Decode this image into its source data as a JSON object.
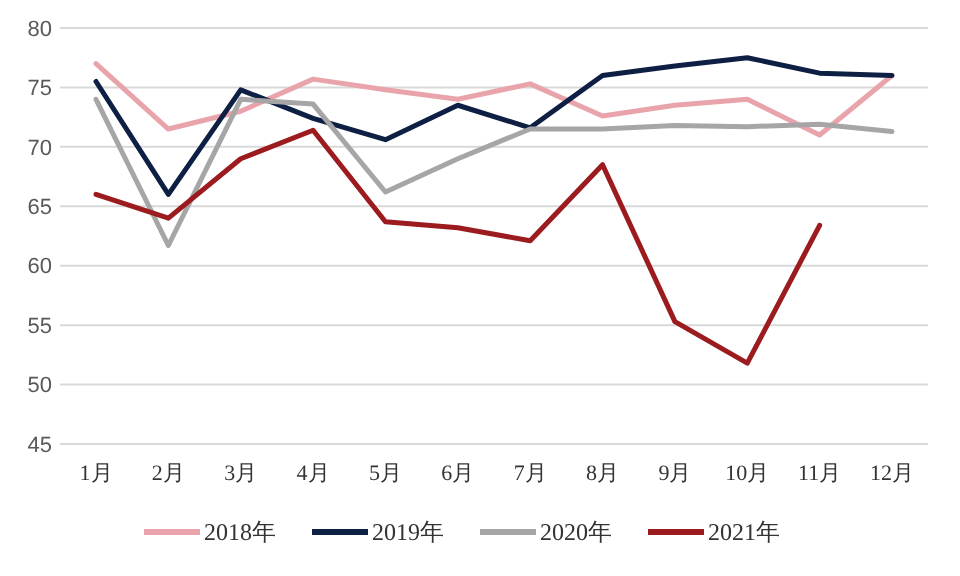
{
  "chart_data": {
    "type": "line",
    "categories": [
      "1月",
      "2月",
      "3月",
      "4月",
      "5月",
      "6月",
      "7月",
      "8月",
      "9月",
      "10月",
      "11月",
      "12月"
    ],
    "series": [
      {
        "name": "2018年",
        "color": "#e8a4aa",
        "values": [
          77,
          71.5,
          73,
          75.7,
          74.8,
          74,
          75.3,
          72.6,
          73.5,
          74,
          71,
          76
        ]
      },
      {
        "name": "2019年",
        "color": "#0e1f44",
        "values": [
          75.5,
          66,
          74.8,
          72.4,
          70.6,
          73.5,
          71.6,
          76,
          76.8,
          77.5,
          76.2,
          76
        ]
      },
      {
        "name": "2020年",
        "color": "#a6a6a6",
        "values": [
          74,
          61.7,
          74,
          73.6,
          66.2,
          69,
          71.5,
          71.5,
          71.8,
          71.7,
          71.9,
          71.3
        ]
      },
      {
        "name": "2021年",
        "color": "#9b1b1f",
        "values": [
          66,
          64,
          69,
          71.4,
          63.7,
          63.2,
          62.1,
          68.5,
          55.3,
          51.8,
          63.4,
          null
        ]
      }
    ],
    "ylim": [
      45,
      80
    ],
    "yticks": [
      45,
      50,
      55,
      60,
      65,
      70,
      75,
      80
    ],
    "grid": "y",
    "legend": "bottom",
    "marker": "none",
    "line_style": "solid"
  }
}
